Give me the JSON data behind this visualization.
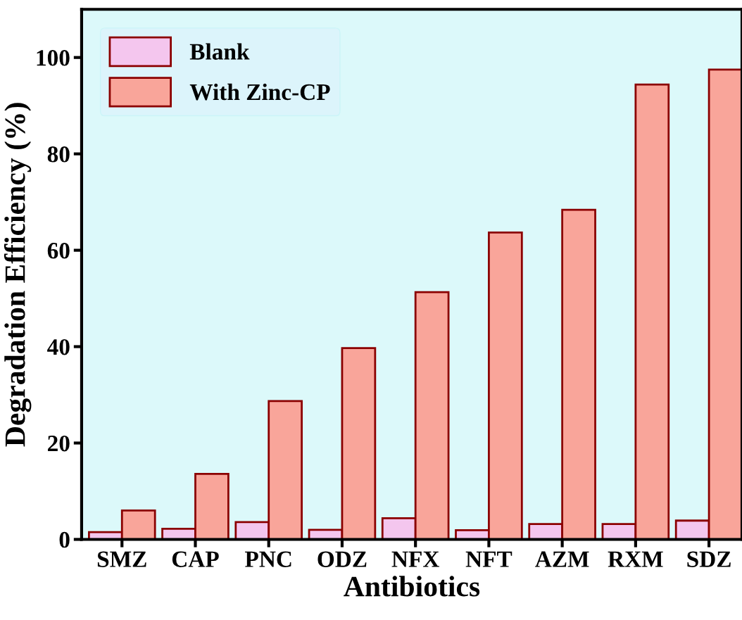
{
  "chart_data": {
    "type": "bar",
    "xlabel": "Antibiotics",
    "ylabel": "Degradation Efficiency (%)",
    "categories": [
      "SMZ",
      "CAP",
      "PNC",
      "ODZ",
      "NFX",
      "NFT",
      "AZM",
      "RXM",
      "SDZ"
    ],
    "series": [
      {
        "name": "Blank",
        "color": "#f4c6ee",
        "values": [
          1.5,
          2.2,
          3.6,
          2.0,
          4.4,
          1.9,
          3.2,
          3.2,
          3.9
        ]
      },
      {
        "name": "With Zinc-CP",
        "color": "#f9a59a",
        "values": [
          6.0,
          13.6,
          28.7,
          39.7,
          51.3,
          63.7,
          68.4,
          94.4,
          97.5
        ]
      }
    ],
    "ylim": [
      0,
      110
    ],
    "yticks": [
      0,
      20,
      40,
      60,
      80,
      100
    ],
    "grid": false,
    "legend": "top left"
  }
}
